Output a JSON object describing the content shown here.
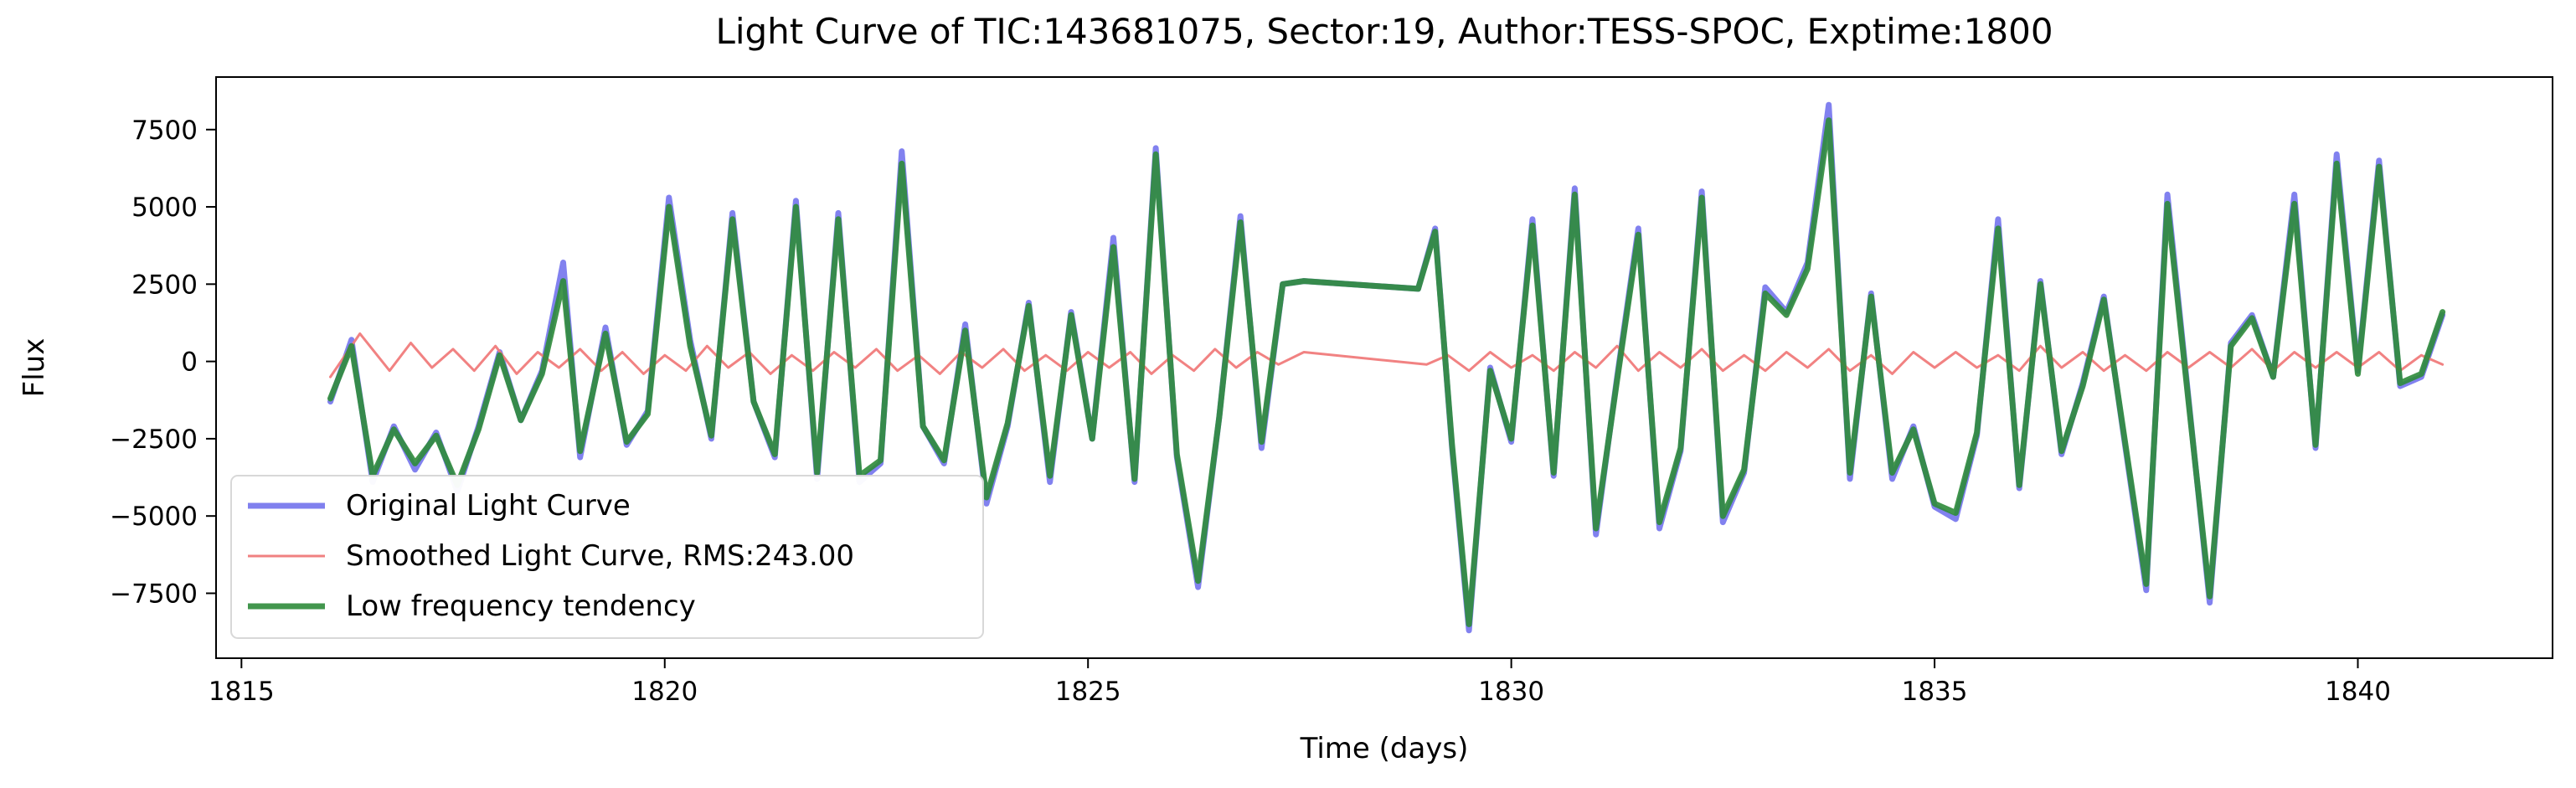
{
  "chart_data": {
    "type": "line",
    "title": "Light Curve of TIC:143681075, Sector:19, Author:TESS-SPOC, Exptime:1800",
    "xlabel": "Time (days)",
    "ylabel": "Flux",
    "xlim": [
      1814.7,
      1842.3
    ],
    "ylim": [
      -9600,
      9200
    ],
    "x_ticks": [
      1815,
      1820,
      1825,
      1830,
      1835,
      1840
    ],
    "y_ticks": [
      -7500,
      -5000,
      -2500,
      0,
      2500,
      5000,
      7500
    ],
    "x_tick_labels": [
      "1815",
      "1820",
      "1825",
      "1830",
      "1835",
      "1840"
    ],
    "y_tick_labels": [
      "−7500",
      "−5000",
      "−2500",
      "0",
      "2500",
      "5000",
      "7500"
    ],
    "grid": false,
    "legend_position": "lower-left",
    "colors": {
      "original": "#6b6bec",
      "smoothed": "#f07b7b",
      "low_frequency": "#2e8b3a",
      "axis": "#000000"
    },
    "series": [
      {
        "name": "Original Light Curve",
        "key": "original",
        "x": [
          1816.05,
          1816.3,
          1816.55,
          1816.8,
          1817.05,
          1817.3,
          1817.55,
          1817.8,
          1818.05,
          1818.3,
          1818.55,
          1818.8,
          1819.0,
          1819.3,
          1819.55,
          1819.8,
          1820.05,
          1820.3,
          1820.55,
          1820.8,
          1821.05,
          1821.3,
          1821.55,
          1821.8,
          1822.05,
          1822.3,
          1822.55,
          1822.8,
          1823.05,
          1823.3,
          1823.55,
          1823.8,
          1824.05,
          1824.3,
          1824.55,
          1824.8,
          1825.05,
          1825.3,
          1825.55,
          1825.8,
          1826.05,
          1826.3,
          1826.55,
          1826.8,
          1827.05,
          1827.3,
          1827.55,
          1828.9,
          1829.1,
          1829.3,
          1829.5,
          1829.75,
          1830.0,
          1830.25,
          1830.5,
          1830.75,
          1831.0,
          1831.25,
          1831.5,
          1831.75,
          1832.0,
          1832.25,
          1832.5,
          1832.75,
          1833.0,
          1833.25,
          1833.5,
          1833.75,
          1834.0,
          1834.25,
          1834.5,
          1834.75,
          1835.0,
          1835.25,
          1835.5,
          1835.75,
          1836.0,
          1836.25,
          1836.5,
          1836.75,
          1837.0,
          1837.25,
          1837.5,
          1837.75,
          1838.0,
          1838.25,
          1838.5,
          1838.75,
          1839.0,
          1839.25,
          1839.5,
          1839.75,
          1840.0,
          1840.25,
          1840.5,
          1840.75,
          1841.0
        ],
        "y": [
          -1300,
          700,
          -3900,
          -2100,
          -3500,
          -2300,
          -4200,
          -2100,
          300,
          -1900,
          -300,
          3200,
          -3100,
          1100,
          -2700,
          -1600,
          5300,
          700,
          -2500,
          4800,
          -1300,
          -3100,
          5200,
          -3800,
          4800,
          -3900,
          -3300,
          6800,
          -2100,
          -3300,
          1200,
          -4600,
          -2100,
          1900,
          -3900,
          1600,
          -2500,
          4000,
          -3900,
          6900,
          -3100,
          -7300,
          -1800,
          4700,
          -2800,
          2500,
          2600,
          2350,
          4300,
          -2800,
          -8700,
          -200,
          -2600,
          4600,
          -3700,
          5600,
          -5600,
          -500,
          4300,
          -5400,
          -2900,
          5500,
          -5200,
          -3600,
          2400,
          1600,
          3200,
          8300,
          -3800,
          2200,
          -3800,
          -2100,
          -4700,
          -5100,
          -2400,
          4600,
          -4100,
          2600,
          -3000,
          -700,
          2100,
          -2700,
          -7400,
          5400,
          -1200,
          -7800,
          600,
          1500,
          -500,
          5400,
          -2800,
          6700,
          -300,
          6500,
          -800,
          -500,
          1500
        ]
      },
      {
        "name": "Smoothed Light Curve, RMS:243.00",
        "key": "smoothed",
        "x": [
          1816.05,
          1816.4,
          1816.75,
          1817.0,
          1817.25,
          1817.5,
          1817.75,
          1818.0,
          1818.25,
          1818.5,
          1818.75,
          1819.0,
          1819.25,
          1819.5,
          1819.75,
          1820.0,
          1820.25,
          1820.5,
          1820.75,
          1821.0,
          1821.25,
          1821.5,
          1821.75,
          1822.0,
          1822.25,
          1822.5,
          1822.75,
          1823.0,
          1823.25,
          1823.5,
          1823.75,
          1824.0,
          1824.25,
          1824.5,
          1824.75,
          1825.0,
          1825.25,
          1825.5,
          1825.75,
          1826.0,
          1826.25,
          1826.5,
          1826.75,
          1827.0,
          1827.25,
          1827.55,
          1829.0,
          1829.25,
          1829.5,
          1829.75,
          1830.0,
          1830.25,
          1830.5,
          1830.75,
          1831.0,
          1831.25,
          1831.5,
          1831.75,
          1832.0,
          1832.25,
          1832.5,
          1832.75,
          1833.0,
          1833.25,
          1833.5,
          1833.75,
          1834.0,
          1834.25,
          1834.5,
          1834.75,
          1835.0,
          1835.25,
          1835.5,
          1835.75,
          1836.0,
          1836.25,
          1836.5,
          1836.75,
          1837.0,
          1837.25,
          1837.5,
          1837.75,
          1838.0,
          1838.25,
          1838.5,
          1838.75,
          1839.0,
          1839.25,
          1839.5,
          1839.75,
          1840.0,
          1840.25,
          1840.5,
          1840.75,
          1841.0
        ],
        "y": [
          -500,
          900,
          -300,
          600,
          -200,
          400,
          -300,
          500,
          -400,
          300,
          -200,
          400,
          -300,
          300,
          -400,
          200,
          -300,
          500,
          -200,
          300,
          -400,
          200,
          -300,
          300,
          -200,
          400,
          -300,
          200,
          -400,
          300,
          -200,
          400,
          -300,
          200,
          -300,
          300,
          -200,
          300,
          -400,
          200,
          -300,
          400,
          -200,
          300,
          -100,
          300,
          -100,
          200,
          -300,
          300,
          -200,
          200,
          -300,
          300,
          -200,
          500,
          -300,
          300,
          -200,
          400,
          -300,
          200,
          -300,
          300,
          -200,
          400,
          -300,
          200,
          -400,
          300,
          -200,
          300,
          -200,
          200,
          -300,
          500,
          -200,
          300,
          -300,
          200,
          -300,
          300,
          -200,
          300,
          -200,
          400,
          -300,
          300,
          -200,
          300,
          -200,
          300,
          -300,
          200,
          -100
        ]
      },
      {
        "name": "Low frequency tendency",
        "key": "low_frequency",
        "x": [
          1816.05,
          1816.3,
          1816.55,
          1816.8,
          1817.05,
          1817.3,
          1817.55,
          1817.8,
          1818.05,
          1818.3,
          1818.55,
          1818.8,
          1819.0,
          1819.3,
          1819.55,
          1819.8,
          1820.05,
          1820.3,
          1820.55,
          1820.8,
          1821.05,
          1821.3,
          1821.55,
          1821.8,
          1822.05,
          1822.3,
          1822.55,
          1822.8,
          1823.05,
          1823.3,
          1823.55,
          1823.8,
          1824.05,
          1824.3,
          1824.55,
          1824.8,
          1825.05,
          1825.3,
          1825.55,
          1825.8,
          1826.05,
          1826.3,
          1826.55,
          1826.8,
          1827.05,
          1827.3,
          1827.55,
          1828.9,
          1829.1,
          1829.3,
          1829.5,
          1829.75,
          1830.0,
          1830.25,
          1830.5,
          1830.75,
          1831.0,
          1831.25,
          1831.5,
          1831.75,
          1832.0,
          1832.25,
          1832.5,
          1832.75,
          1833.0,
          1833.25,
          1833.5,
          1833.75,
          1834.0,
          1834.25,
          1834.5,
          1834.75,
          1835.0,
          1835.25,
          1835.5,
          1835.75,
          1836.0,
          1836.25,
          1836.5,
          1836.75,
          1837.0,
          1837.25,
          1837.5,
          1837.75,
          1838.0,
          1838.25,
          1838.5,
          1838.75,
          1839.0,
          1839.25,
          1839.5,
          1839.75,
          1840.0,
          1840.25,
          1840.5,
          1840.75,
          1841.0
        ],
        "y": [
          -1200,
          500,
          -3700,
          -2200,
          -3300,
          -2400,
          -4000,
          -2200,
          200,
          -1900,
          -400,
          2600,
          -2900,
          900,
          -2600,
          -1700,
          5000,
          500,
          -2400,
          4600,
          -1300,
          -3000,
          5000,
          -3600,
          4600,
          -3700,
          -3200,
          6400,
          -2100,
          -3200,
          1000,
          -4400,
          -2000,
          1800,
          -3700,
          1500,
          -2500,
          3700,
          -3800,
          6700,
          -3000,
          -7100,
          -1800,
          4500,
          -2600,
          2500,
          2600,
          2350,
          4200,
          -2700,
          -8500,
          -300,
          -2500,
          4400,
          -3600,
          5400,
          -5400,
          -600,
          4100,
          -5200,
          -2800,
          5300,
          -5000,
          -3500,
          2200,
          1500,
          3000,
          7800,
          -3600,
          2100,
          -3600,
          -2200,
          -4600,
          -4900,
          -2300,
          4300,
          -4000,
          2500,
          -2900,
          -800,
          2000,
          -2600,
          -7200,
          5100,
          -1300,
          -7600,
          500,
          1400,
          -500,
          5100,
          -2700,
          6400,
          -400,
          6300,
          -700,
          -400,
          1600
        ]
      }
    ]
  }
}
